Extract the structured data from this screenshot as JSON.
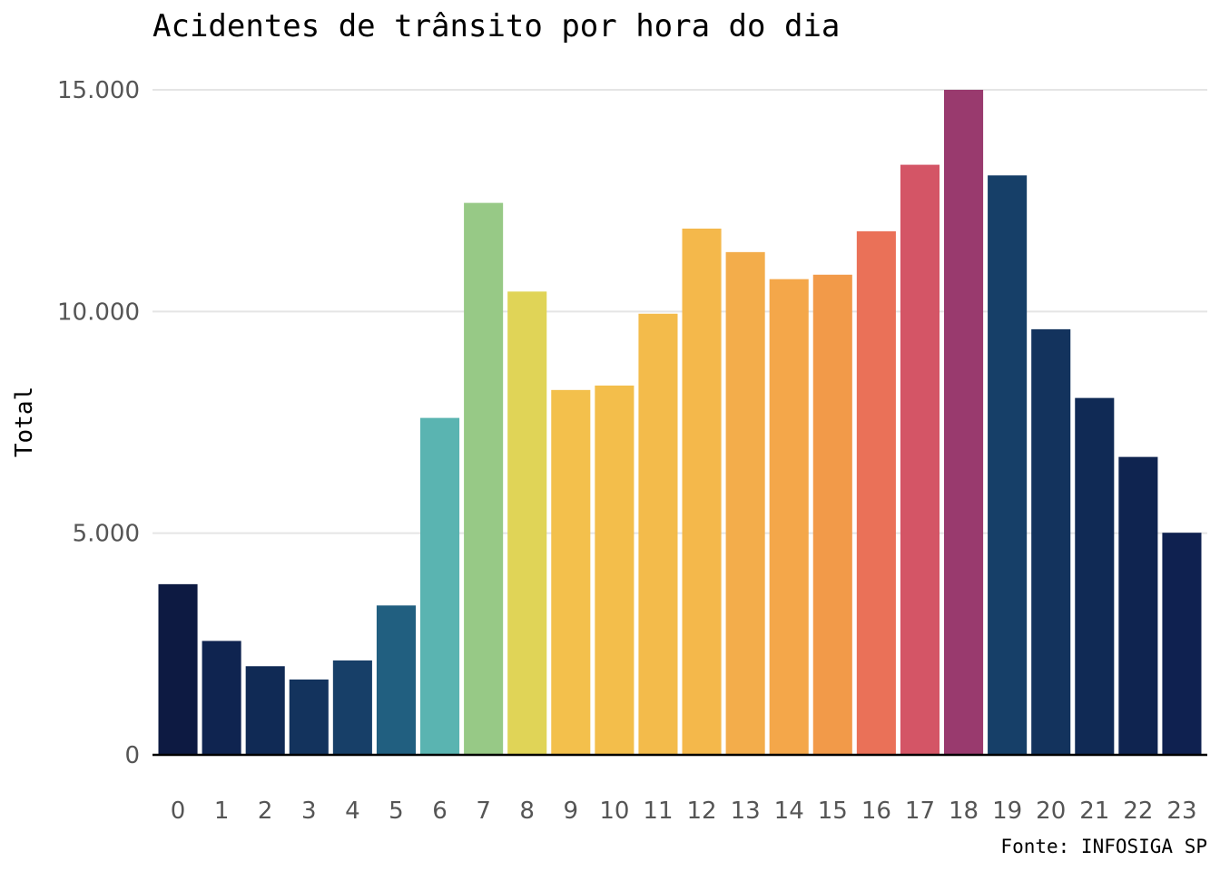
{
  "chart_data": {
    "type": "bar",
    "title": "Acidentes de trânsito por hora do dia",
    "xlabel": "",
    "ylabel": "Total",
    "caption": "Fonte: INFOSIGA SP",
    "ylim": [
      0,
      15000
    ],
    "yticks": [
      0,
      5000,
      10000,
      15000
    ],
    "ytick_labels": [
      "0",
      "5.000",
      "10.000",
      "15.000"
    ],
    "grid": "horizontal",
    "categories": [
      "0",
      "1",
      "2",
      "3",
      "4",
      "5",
      "6",
      "7",
      "8",
      "9",
      "10",
      "11",
      "12",
      "13",
      "14",
      "15",
      "16",
      "17",
      "18",
      "19",
      "20",
      "21",
      "22",
      "23"
    ],
    "values": [
      3850,
      2570,
      2000,
      1700,
      2130,
      3370,
      7600,
      12450,
      10450,
      8230,
      8330,
      9950,
      11870,
      11340,
      10730,
      10830,
      11810,
      13310,
      15000,
      13070,
      9600,
      8050,
      6720,
      5010
    ],
    "colors": [
      "#0d1a42",
      "#0f2450",
      "#102a55",
      "#13335d",
      "#173f68",
      "#215f80",
      "#5ab4b1",
      "#97c986",
      "#e0d457",
      "#f3c04c",
      "#f3be4b",
      "#f3bb4b",
      "#f4b84b",
      "#f3ad4b",
      "#f4a74a",
      "#f29a49",
      "#ea7158",
      "#d45566",
      "#993a6e",
      "#163f68",
      "#13335d",
      "#102a55",
      "#0f2450",
      "#0f2150"
    ]
  }
}
